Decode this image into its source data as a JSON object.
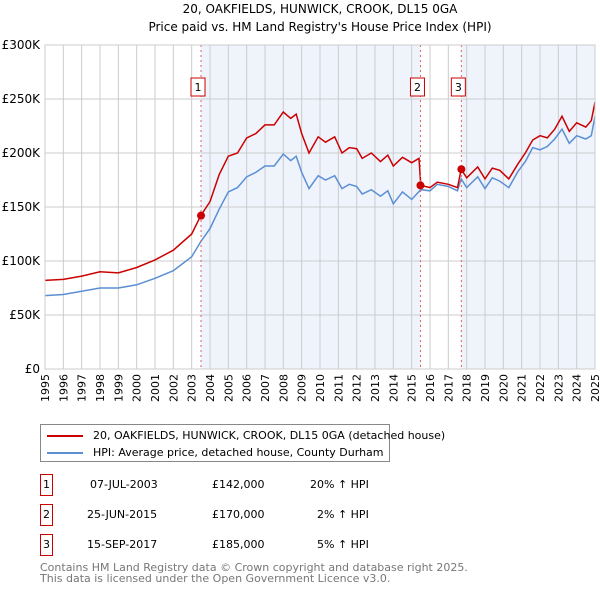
{
  "chart_data": {
    "type": "line",
    "title": "20, OAKFIELDS, HUNWICK, CROOK, DL15 0GA",
    "subtitle": "Price paid vs. HM Land Registry's House Price Index (HPI)",
    "xlim": [
      1995,
      2025
    ],
    "ylim": [
      0,
      300000
    ],
    "x_ticks": [
      "1995",
      "1996",
      "1997",
      "1998",
      "1999",
      "2000",
      "2001",
      "2002",
      "2003",
      "2004",
      "2005",
      "2006",
      "2007",
      "2008",
      "2009",
      "2010",
      "2011",
      "2012",
      "2013",
      "2014",
      "2015",
      "2016",
      "2017",
      "2018",
      "2019",
      "2020",
      "2021",
      "2022",
      "2023",
      "2024",
      "2025"
    ],
    "y_ticks": [
      {
        "v": 0,
        "l": "£0"
      },
      {
        "v": 50000,
        "l": "£50K"
      },
      {
        "v": 100000,
        "l": "£100K"
      },
      {
        "v": 150000,
        "l": "£150K"
      },
      {
        "v": 200000,
        "l": "£200K"
      },
      {
        "v": 250000,
        "l": "£250K"
      },
      {
        "v": 300000,
        "l": "£300K"
      }
    ],
    "grid": true,
    "series": [
      {
        "name": "20, OAKFIELDS, HUNWICK, CROOK, DL15 0GA (detached house)",
        "color": "#cc0000",
        "x": [
          1995,
          1996,
          1997,
          1998,
          1999,
          2000,
          2001,
          2002,
          2003,
          2003.5,
          2004,
          2004.5,
          2005,
          2005.5,
          2006,
          2006.5,
          2007,
          2007.5,
          2008,
          2008.4,
          2008.7,
          2009,
          2009.4,
          2009.9,
          2010.3,
          2010.8,
          2011.2,
          2011.6,
          2012,
          2012.3,
          2012.8,
          2013.3,
          2013.7,
          2014,
          2014.5,
          2015,
          2015.4,
          2015.5,
          2016,
          2016.4,
          2017,
          2017.5,
          2017.7,
          2018,
          2018.6,
          2019,
          2019.4,
          2019.8,
          2020.3,
          2020.8,
          2021.2,
          2021.6,
          2022,
          2022.4,
          2022.8,
          2023.2,
          2023.6,
          2024,
          2024.5,
          2024.8,
          2025
        ],
        "y": [
          82,
          83,
          86,
          90,
          89,
          94,
          101,
          110,
          125,
          142,
          155,
          180,
          197,
          200,
          214,
          218,
          226,
          226,
          238,
          232,
          236,
          218,
          200,
          215,
          210,
          215,
          200,
          205,
          204,
          195,
          200,
          192,
          198,
          188,
          196,
          191,
          195,
          170,
          168,
          173,
          171,
          168,
          185,
          177,
          187,
          176,
          186,
          184,
          176,
          190,
          200,
          212,
          216,
          214,
          222,
          234,
          220,
          228,
          224,
          230,
          247
        ]
      },
      {
        "name": "HPI: Average price, detached house, County Durham",
        "color": "#5b8fd4",
        "x": [
          1995,
          1996,
          1997,
          1998,
          1999,
          2000,
          2001,
          2002,
          2003,
          2003.5,
          2004,
          2004.5,
          2005,
          2005.5,
          2006,
          2006.5,
          2007,
          2007.5,
          2008,
          2008.4,
          2008.7,
          2009,
          2009.4,
          2009.9,
          2010.3,
          2010.8,
          2011.2,
          2011.6,
          2012,
          2012.3,
          2012.8,
          2013.3,
          2013.7,
          2014,
          2014.5,
          2015,
          2015.5,
          2016,
          2016.4,
          2017,
          2017.5,
          2017.7,
          2018,
          2018.6,
          2019,
          2019.4,
          2019.8,
          2020.3,
          2020.8,
          2021.2,
          2021.6,
          2022,
          2022.4,
          2022.8,
          2023.2,
          2023.6,
          2024,
          2024.5,
          2024.8,
          2025
        ],
        "y": [
          68,
          69,
          72,
          75,
          75,
          78,
          84,
          91,
          104,
          118,
          130,
          148,
          164,
          168,
          178,
          182,
          188,
          188,
          199,
          193,
          197,
          182,
          167,
          179,
          175,
          179,
          167,
          171,
          169,
          162,
          166,
          160,
          165,
          153,
          164,
          157,
          166,
          165,
          171,
          169,
          165,
          176,
          168,
          178,
          167,
          177,
          174,
          168,
          183,
          192,
          205,
          203,
          206,
          213,
          222,
          209,
          216,
          213,
          216,
          234
        ]
      }
    ],
    "y_unit": "thousand GBP",
    "sales": [
      {
        "n": "1",
        "x": 2003.51,
        "date": "07-JUL-2003",
        "price": "£142,000",
        "price_v": 142,
        "hpi": "20% ↑ HPI"
      },
      {
        "n": "2",
        "x": 2015.48,
        "date": "25-JUN-2015",
        "price": "£170,000",
        "price_v": 170,
        "hpi": "2% ↑ HPI"
      },
      {
        "n": "3",
        "x": 2017.71,
        "date": "15-SEP-2017",
        "price": "£185,000",
        "price_v": 185,
        "hpi": "5% ↑ HPI"
      }
    ],
    "legend_placement": "below"
  },
  "footer": {
    "line1": "Contains HM Land Registry data © Crown copyright and database right 2025.",
    "line2": "This data is licensed under the Open Government Licence v3.0."
  }
}
